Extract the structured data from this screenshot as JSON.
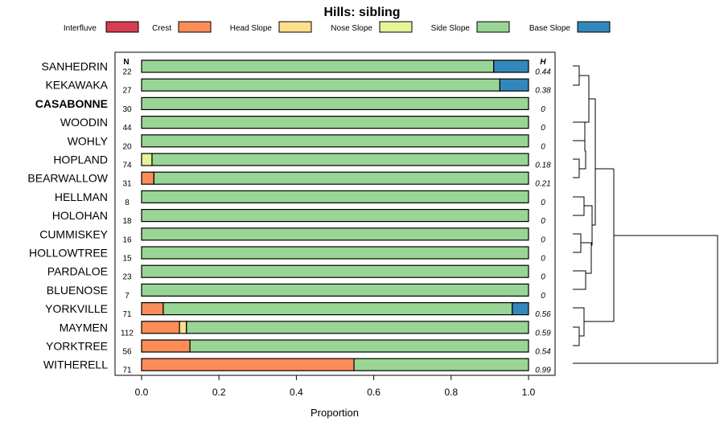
{
  "chart_data": {
    "type": "stacked-bar",
    "title": "Hills: sibling",
    "xlabel": "Proportion",
    "xlim": [
      0,
      1
    ],
    "xticks": [
      "0.0",
      "0.2",
      "0.4",
      "0.6",
      "0.8",
      "1.0"
    ],
    "n_header": "N",
    "h_header": "H",
    "highlight": "CASABONNE",
    "categories": [
      {
        "name": "Interfluve",
        "color": "#d53e4f"
      },
      {
        "name": "Crest",
        "color": "#fc8d59"
      },
      {
        "name": "Head Slope",
        "color": "#fee08b"
      },
      {
        "name": "Nose Slope",
        "color": "#e6f598"
      },
      {
        "name": "Side Slope",
        "color": "#99d594"
      },
      {
        "name": "Base Slope",
        "color": "#3288bd"
      }
    ],
    "rows": [
      {
        "label": "SANHEDRIN",
        "n": "22",
        "h": "0.44",
        "values": [
          0,
          0,
          0,
          0,
          0.91,
          0.09
        ]
      },
      {
        "label": "KEKAWAKA",
        "n": "27",
        "h": "0.38",
        "values": [
          0,
          0,
          0,
          0,
          0.926,
          0.074
        ]
      },
      {
        "label": "CASABONNE",
        "n": "30",
        "h": "0",
        "values": [
          0,
          0,
          0,
          0,
          1,
          0
        ]
      },
      {
        "label": "WOODIN",
        "n": "44",
        "h": "0",
        "values": [
          0,
          0,
          0,
          0,
          1,
          0
        ]
      },
      {
        "label": "WOHLY",
        "n": "20",
        "h": "0",
        "values": [
          0,
          0,
          0,
          0,
          1,
          0
        ]
      },
      {
        "label": "HOPLAND",
        "n": "74",
        "h": "0.18",
        "values": [
          0,
          0,
          0,
          0.027,
          0.973,
          0
        ]
      },
      {
        "label": "BEARWALLOW",
        "n": "31",
        "h": "0.21",
        "values": [
          0,
          0.032,
          0,
          0,
          0.968,
          0
        ]
      },
      {
        "label": "HELLMAN",
        "n": "8",
        "h": "0",
        "values": [
          0,
          0,
          0,
          0,
          1,
          0
        ]
      },
      {
        "label": "HOLOHAN",
        "n": "18",
        "h": "0",
        "values": [
          0,
          0,
          0,
          0,
          1,
          0
        ]
      },
      {
        "label": "CUMMISKEY",
        "n": "16",
        "h": "0",
        "values": [
          0,
          0,
          0,
          0,
          1,
          0
        ]
      },
      {
        "label": "HOLLOWTREE",
        "n": "15",
        "h": "0",
        "values": [
          0,
          0,
          0,
          0,
          1,
          0
        ]
      },
      {
        "label": "PARDALOE",
        "n": "23",
        "h": "0",
        "values": [
          0,
          0,
          0,
          0,
          1,
          0
        ]
      },
      {
        "label": "BLUENOSE",
        "n": "7",
        "h": "0",
        "values": [
          0,
          0,
          0,
          0,
          1,
          0
        ]
      },
      {
        "label": "YORKVILLE",
        "n": "71",
        "h": "0.56",
        "values": [
          0,
          0.056,
          0,
          0,
          0.902,
          0.042
        ]
      },
      {
        "label": "MAYMEN",
        "n": "112",
        "h": "0.59",
        "values": [
          0,
          0.098,
          0.018,
          0,
          0.884,
          0
        ]
      },
      {
        "label": "YORKTREE",
        "n": "56",
        "h": "0.54",
        "values": [
          0,
          0.125,
          0,
          0,
          0.875,
          0
        ]
      },
      {
        "label": "WITHERELL",
        "n": "71",
        "h": "0.99",
        "values": [
          0,
          0.549,
          0,
          0,
          0.451,
          0
        ]
      }
    ]
  }
}
